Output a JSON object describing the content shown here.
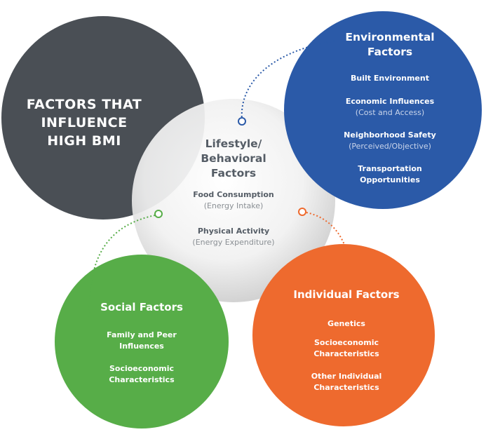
{
  "title": {
    "lines": [
      "FACTORS THAT",
      "INFLUENCE",
      "HIGH BMI"
    ]
  },
  "center": {
    "heading": [
      "Lifestyle/",
      "Behavioral",
      "Factors"
    ],
    "items": [
      {
        "label": "Food Consumption",
        "detail": "(Energy Intake)"
      },
      {
        "label": "Physical Activity",
        "detail": "(Energy Expenditure)"
      }
    ]
  },
  "environmental": {
    "heading": [
      "Environmental",
      "Factors"
    ],
    "items": [
      {
        "label": "Built Environment"
      },
      {
        "label": "Economic Influences",
        "detail": "(Cost and Access)"
      },
      {
        "label": "Neighborhood Safety",
        "detail": "(Perceived/Objective)"
      },
      {
        "label": "Transportation",
        "label2": "Opportunities"
      }
    ]
  },
  "social": {
    "heading": "Social Factors",
    "items": [
      {
        "label": "Family and Peer",
        "label2": "Influences"
      },
      {
        "label": "Socioeconomic",
        "label2": "Characteristics"
      }
    ]
  },
  "individual": {
    "heading": "Individual Factors",
    "items": [
      {
        "label": "Genetics"
      },
      {
        "label": "Socioeconomic",
        "label2": "Characteristics"
      },
      {
        "label": "Other Individual",
        "label2": "Characteristics"
      }
    ]
  },
  "colors": {
    "title_circle": "#4a4f55",
    "center_circle": "#e8e8e8",
    "environmental": "#2b5aa8",
    "social": "#57ad48",
    "individual": "#ee6a2e"
  }
}
